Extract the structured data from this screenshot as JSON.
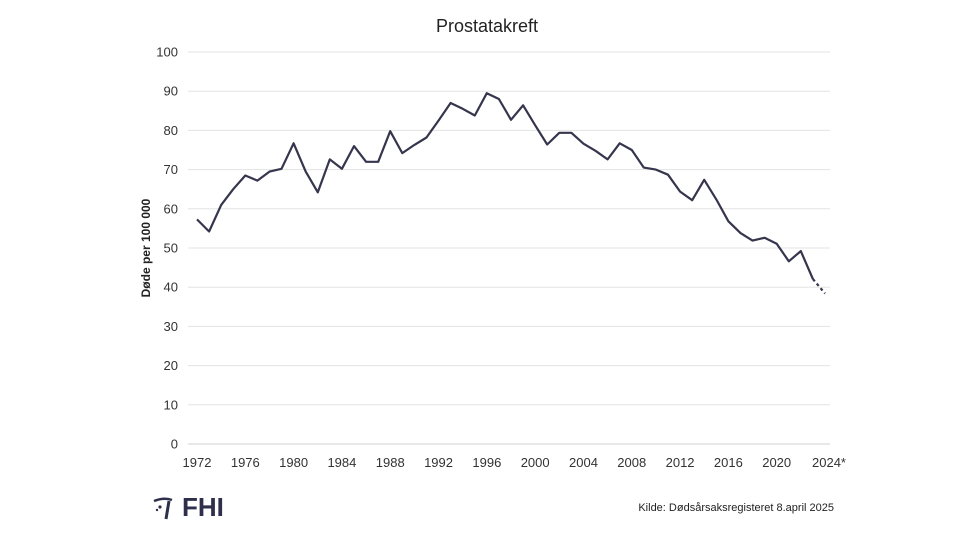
{
  "chart_data": {
    "type": "line",
    "title": "Prostatakreft",
    "xlabel": "",
    "ylabel": "Døde per 100 000",
    "ylim": [
      0,
      100
    ],
    "yticks": [
      0,
      10,
      20,
      30,
      40,
      50,
      60,
      70,
      80,
      90,
      100
    ],
    "xlim": [
      1972,
      2024
    ],
    "xtick_labels": [
      "1972",
      "1976",
      "1980",
      "1984",
      "1988",
      "1992",
      "1996",
      "2000",
      "2004",
      "2008",
      "2012",
      "2016",
      "2020",
      "2024*"
    ],
    "xtick_values": [
      1972,
      1976,
      1980,
      1984,
      1988,
      1992,
      1996,
      2000,
      2004,
      2008,
      2012,
      2016,
      2020,
      2024
    ],
    "grid": "horizontal",
    "line_color": "#35354d",
    "dashed_from": 2023,
    "series": [
      {
        "name": "Prostatakreft",
        "x": [
          1972,
          1973,
          1974,
          1975,
          1976,
          1977,
          1978,
          1979,
          1980,
          1981,
          1982,
          1983,
          1984,
          1985,
          1986,
          1987,
          1988,
          1989,
          1990,
          1991,
          1992,
          1993,
          1994,
          1995,
          1996,
          1997,
          1998,
          1999,
          2000,
          2001,
          2002,
          2003,
          2004,
          2005,
          2006,
          2007,
          2008,
          2009,
          2010,
          2011,
          2012,
          2013,
          2014,
          2015,
          2016,
          2017,
          2018,
          2019,
          2020,
          2021,
          2022,
          2023,
          2024
        ],
        "values": [
          57.3,
          54.2,
          61,
          65,
          68.5,
          67.2,
          69.5,
          70.2,
          76.7,
          69.5,
          64.2,
          72.6,
          70.2,
          76,
          72,
          72,
          79.8,
          74.2,
          76.3,
          78.2,
          82.5,
          87,
          85.5,
          83.8,
          89.5,
          88,
          82.7,
          86.4,
          81.3,
          76.4,
          79.4,
          79.4,
          76.6,
          74.8,
          72.6,
          76.7,
          75,
          70.5,
          70,
          68.7,
          64.4,
          62.2,
          67.4,
          62.4,
          56.8,
          53.8,
          51.9,
          52.6,
          51.1,
          46.6,
          49.2,
          42.1,
          38.4
        ]
      }
    ]
  },
  "footer": {
    "logo_text": "FHI",
    "source": "Kilde: Dødsårsaksregisteret 8.april 2025"
  }
}
